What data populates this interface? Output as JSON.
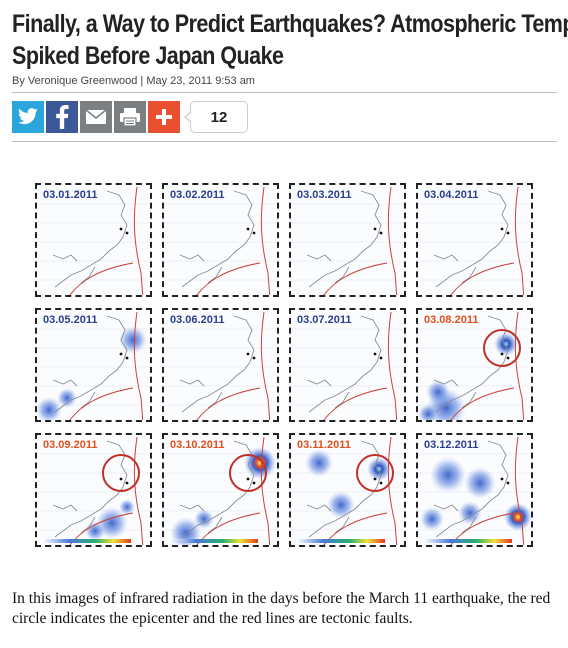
{
  "article": {
    "title_line1": "Finally, a Way to Predict Earthquakes? Atmospheric Temp",
    "title_line2": "Spiked Before Japan Quake",
    "byline": "By Veronique Greenwood | May 23, 2011 9:53 am"
  },
  "share": {
    "buttons": [
      {
        "name": "twitter",
        "icon": "twitter-bird-icon",
        "color": "#2ba6dd"
      },
      {
        "name": "facebook",
        "icon": "facebook-f-icon",
        "color": "#3b5998"
      },
      {
        "name": "email",
        "icon": "envelope-icon",
        "color": "#7b7f82"
      },
      {
        "name": "print",
        "icon": "printer-icon",
        "color": "#7b7f82"
      },
      {
        "name": "more",
        "icon": "plus-icon",
        "color": "#e8502f"
      }
    ],
    "count": "12"
  },
  "figure": {
    "panels": [
      {
        "date": "03.01.2011",
        "color": "#2a3f8f",
        "hotspots": [],
        "circle": false
      },
      {
        "date": "03.02.2011",
        "color": "#2a3f8f",
        "hotspots": [],
        "circle": false
      },
      {
        "date": "03.03.2011",
        "color": "#2a3f8f",
        "hotspots": [],
        "circle": false
      },
      {
        "date": "03.04.2011",
        "color": "#2a3f8f",
        "hotspots": [],
        "circle": false
      },
      {
        "date": "03.05.2011",
        "color": "#2a3f8f",
        "hotspots": [
          "north-light",
          "southwest-medium"
        ],
        "circle": false
      },
      {
        "date": "03.06.2011",
        "color": "#2a3f8f",
        "hotspots": [],
        "circle": false
      },
      {
        "date": "03.07.2011",
        "color": "#2a3f8f",
        "hotspots": [],
        "circle": false
      },
      {
        "date": "03.08.2011",
        "color": "#e0501e",
        "hotspots": [
          "epicenter-strong",
          "southwest-strong"
        ],
        "circle": true
      },
      {
        "date": "03.09.2011",
        "color": "#e0501e",
        "hotspots": [
          "center-strong"
        ],
        "circle": true
      },
      {
        "date": "03.10.2011",
        "color": "#e0501e",
        "hotspots": [
          "epicenter-peak",
          "south-strong"
        ],
        "circle": true
      },
      {
        "date": "03.11.2011",
        "color": "#e0501e",
        "hotspots": [
          "epicenter-strong",
          "center-light"
        ],
        "circle": true
      },
      {
        "date": "03.12.2011",
        "color": "#2a3f8f",
        "hotspots": [
          "east-peak",
          "broad-medium"
        ],
        "circle": false
      }
    ]
  },
  "caption": "In this images of infrared radiation in the days before the March 11 earthquake, the red circle indicates the epicenter and the red lines are tectonic faults."
}
